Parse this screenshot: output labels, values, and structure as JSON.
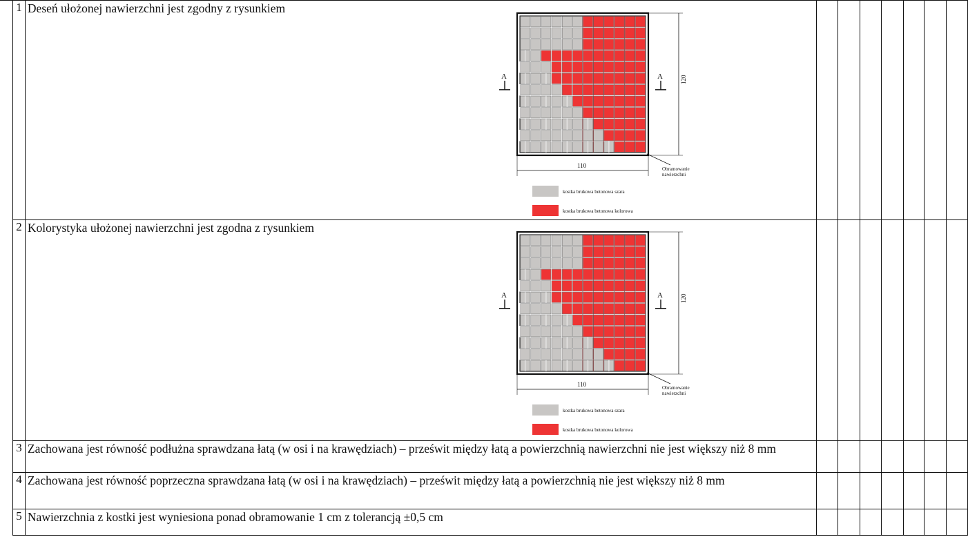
{
  "rows": [
    {
      "num": "1",
      "text": "Deseń ułożonej nawierzchni jest zgodny z rysunkiem"
    },
    {
      "num": "2",
      "text": "Kolorystyka ułożonej nawierzchni jest zgodna z rysunkiem"
    },
    {
      "num": "3",
      "text": "Zachowana jest równość podłużna sprawdzana łatą (w osi i na krawędziach) – prześwit między łatą a powierzchnią nawierzchni nie jest większy niż 8 mm"
    },
    {
      "num": "4",
      "text": "Zachowana jest równość poprzeczna sprawdzana łatą (w osi i na krawędziach) – prześwit między łatą a powierzchnią nie jest większy niż 8 mm"
    },
    {
      "num": "5",
      "text": "Nawierzchnia z kostki jest wyniesiona ponad obramowanie 1 cm z tolerancją ±0,5 cm"
    }
  ],
  "figure1": {
    "section_mark": "A",
    "dim_height": "120",
    "dim_width": "110",
    "border_label_line1": "Obramowanie",
    "border_label_line2": "nawierzchni",
    "legend_gray": "kostka brukowa betonowa szara",
    "legend_red": "kostka brukowa betonowa kolorowa"
  },
  "figure2": {
    "section_mark": "A",
    "dim_height": "120",
    "dim_width": "110",
    "border_label_line1": "Obramowanie",
    "border_label_line2": "nawierzchni",
    "legend_gray": "kostka brukowa betonowa szara",
    "legend_red": "kostka brukowa betonowa kolorowa"
  },
  "colors": {
    "gray_paver": "#c8c6c4",
    "red_paver": "#ee3434",
    "ink": "#111111"
  }
}
